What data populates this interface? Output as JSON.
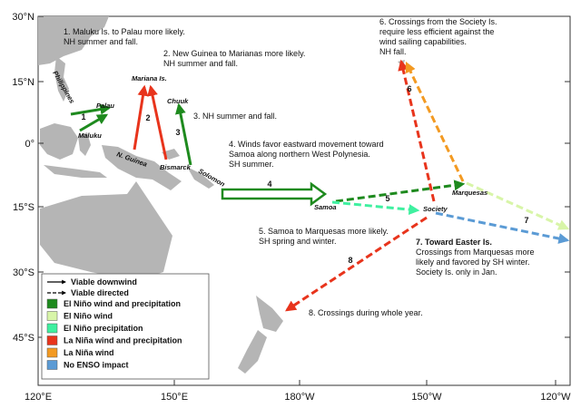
{
  "map": {
    "lat_labels": [
      "30°N",
      "15°N",
      "0°",
      "15°S",
      "30°S",
      "45°S"
    ],
    "lon_labels": [
      "120°E",
      "150°E",
      "180°W",
      "150°W",
      "120°W"
    ],
    "places": [
      "Philippines",
      "Palau",
      "Maluku",
      "Mariana Is.",
      "Chuuk",
      "N. Guinea",
      "Bismarck",
      "Solomon",
      "Samoa",
      "Society",
      "Marquesas"
    ],
    "route_numbers": [
      "1",
      "2",
      "3",
      "4",
      "5",
      "6",
      "7",
      "8"
    ],
    "notes": [
      [
        "1. Maluku Is. to Palau  more likely.",
        "NH summer and fall."
      ],
      [
        "2. New Guinea to Marianas more likely.",
        "NH summer and fall."
      ],
      [
        "3. NH summer and fall."
      ],
      [
        "4. Winds favor eastward movement toward",
        "Samoa along northern West Polynesia.",
        "SH summer."
      ],
      [
        "5. Samoa to Marquesas more likely.",
        "SH spring and winter."
      ],
      [
        "6. Crossings from the Society Is.",
        "require less efficient against the",
        "wind sailing  capabilities.",
        "NH fall."
      ],
      [
        "7. Toward Easter Is.",
        "Crossings from Marquesas more",
        "likely and favored by SH winter.",
        "Society Is.  only in Jan."
      ],
      [
        "8. Crossings during whole year."
      ]
    ],
    "legend": {
      "lines": [
        "Viable downwind",
        "Viable directed"
      ],
      "items": [
        {
          "label": "El Niño wind and precipitation",
          "color": "#1e8a1e"
        },
        {
          "label": "El Niño wind",
          "color": "#d8f5a8"
        },
        {
          "label": "El Niño precipitation",
          "color": "#3ff0a0"
        },
        {
          "label": "La Niña wind and precipitation",
          "color": "#e8341c"
        },
        {
          "label": "La Niña wind",
          "color": "#f39a22"
        },
        {
          "label": "No ENSO impact",
          "color": "#5b9bd5"
        }
      ]
    }
  }
}
